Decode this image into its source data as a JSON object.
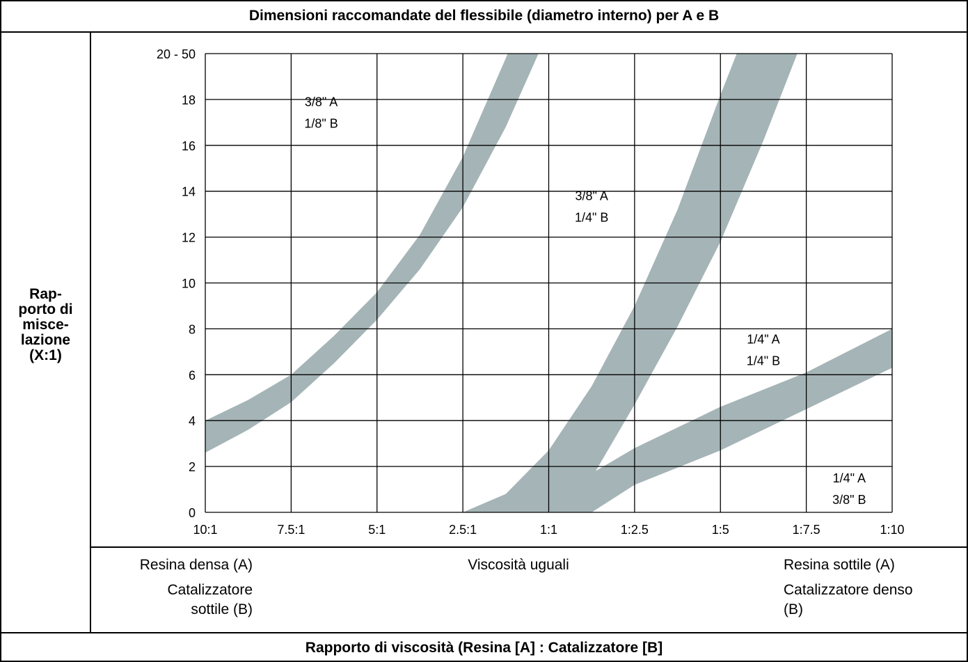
{
  "title": "Dimensioni raccomandate del flessibile (diametro interno) per A e B",
  "footer_title": "Rapporto di viscosità (Resina [A] : Catalizzatore [B]",
  "y_axis_label_lines": [
    "Rap-",
    "porto di",
    "misce-",
    "lazione",
    "(X:1)"
  ],
  "left_notes": {
    "line1": "Resina densa (A)",
    "line2": "Catalizzatore",
    "line3": "sottile (B)"
  },
  "center_note": "Viscosità uguali",
  "right_notes": {
    "line1": "Resina sottile (A)",
    "line2": "Catalizzatore denso",
    "line3": "(B)"
  },
  "colors": {
    "band": "#a5b4b6",
    "grid": "#000000",
    "background": "#ffffff"
  },
  "chart_data": {
    "type": "area",
    "x_tick_labels": [
      "10:1",
      "7.5:1",
      "5:1",
      "2.5:1",
      "1:1",
      "1:2.5",
      "1:5",
      "1:7.5",
      "1:10"
    ],
    "y_tick_labels": [
      "0",
      "2",
      "4",
      "6",
      "8",
      "10",
      "12",
      "14",
      "16",
      "18",
      "20 - 50"
    ],
    "ylim": [
      0,
      20
    ],
    "grid": true,
    "bands": [
      {
        "upper": [
          [
            0,
            4.0
          ],
          [
            0.5,
            4.9
          ],
          [
            1,
            6.0
          ],
          [
            1.5,
            7.7
          ],
          [
            2,
            9.6
          ],
          [
            2.5,
            12.1
          ],
          [
            3,
            15.5
          ],
          [
            3.5,
            19.8
          ],
          [
            3.75,
            22.0
          ]
        ],
        "lower": [
          [
            0,
            2.6
          ],
          [
            0.5,
            3.6
          ],
          [
            1,
            4.8
          ],
          [
            1.5,
            6.5
          ],
          [
            2,
            8.4
          ],
          [
            2.5,
            10.6
          ],
          [
            3,
            13.3
          ],
          [
            3.5,
            16.8
          ],
          [
            4.0,
            21.0
          ]
        ]
      },
      {
        "upper": [
          [
            3.0,
            0.0
          ],
          [
            3.5,
            0.8
          ],
          [
            4,
            2.7
          ],
          [
            4.5,
            5.5
          ],
          [
            5,
            9.0
          ],
          [
            5.5,
            13.2
          ],
          [
            6,
            18.2
          ],
          [
            6.4,
            22.0
          ]
        ],
        "lower": [
          [
            4.15,
            0.0
          ],
          [
            4.5,
            1.5
          ],
          [
            5,
            4.7
          ],
          [
            5.5,
            8.1
          ],
          [
            6,
            11.8
          ],
          [
            6.5,
            16.2
          ],
          [
            7,
            21.0
          ],
          [
            7.3,
            22.0
          ]
        ]
      },
      {
        "upper": [
          [
            3.75,
            0.0
          ],
          [
            4,
            0.6
          ],
          [
            5,
            2.8
          ],
          [
            6,
            4.6
          ],
          [
            7,
            6.1
          ],
          [
            8,
            8.0
          ],
          [
            8.8,
            10.0
          ]
        ],
        "lower": [
          [
            4.5,
            0.0
          ],
          [
            5,
            1.2
          ],
          [
            6,
            2.7
          ],
          [
            7,
            4.5
          ],
          [
            8,
            6.3
          ],
          [
            9,
            8.0
          ]
        ]
      }
    ],
    "region_labels": [
      {
        "lines": [
          "3/8\" A",
          "1/8\" B"
        ],
        "x": 1.35,
        "y": 17.5
      },
      {
        "lines": [
          "3/8\" A",
          "1/4\" B"
        ],
        "x": 4.5,
        "y": 13.4
      },
      {
        "lines": [
          "1/4\" A",
          "1/4\" B"
        ],
        "x": 6.5,
        "y": 7.15
      },
      {
        "lines": [
          "1/4\" A",
          "3/8\" B"
        ],
        "x": 7.5,
        "y": 1.1
      }
    ]
  }
}
